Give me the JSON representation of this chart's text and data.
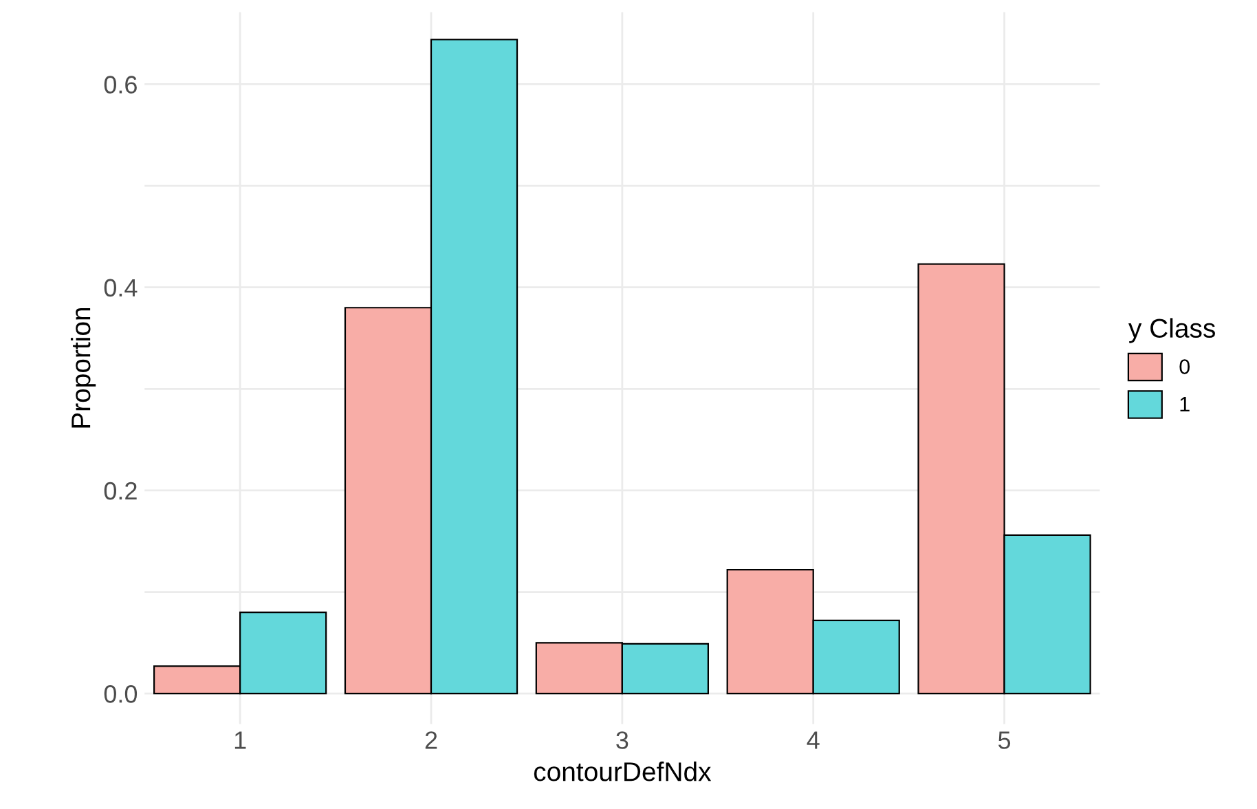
{
  "chart_data": {
    "type": "bar",
    "xlabel": "contourDefNdx",
    "ylabel": "Proportion",
    "legend_title": "y Class",
    "categories": [
      "1",
      "2",
      "3",
      "4",
      "5"
    ],
    "series": [
      {
        "name": "0",
        "color": "#f8ada7",
        "values": [
          0.027,
          0.38,
          0.05,
          0.122,
          0.423
        ]
      },
      {
        "name": "1",
        "color": "#63d8db",
        "values": [
          0.08,
          0.644,
          0.049,
          0.072,
          0.156
        ]
      }
    ],
    "ylim": [
      -0.03,
      0.671
    ],
    "yticks": [
      {
        "value": 0,
        "label": "0.0"
      },
      {
        "value": 0.1,
        "label": null
      },
      0.2,
      {
        "value": 0.3,
        "label": null
      },
      0.4,
      {
        "value": 0.5,
        "label": null
      },
      0.6
    ],
    "grid": true,
    "legend": "right"
  }
}
